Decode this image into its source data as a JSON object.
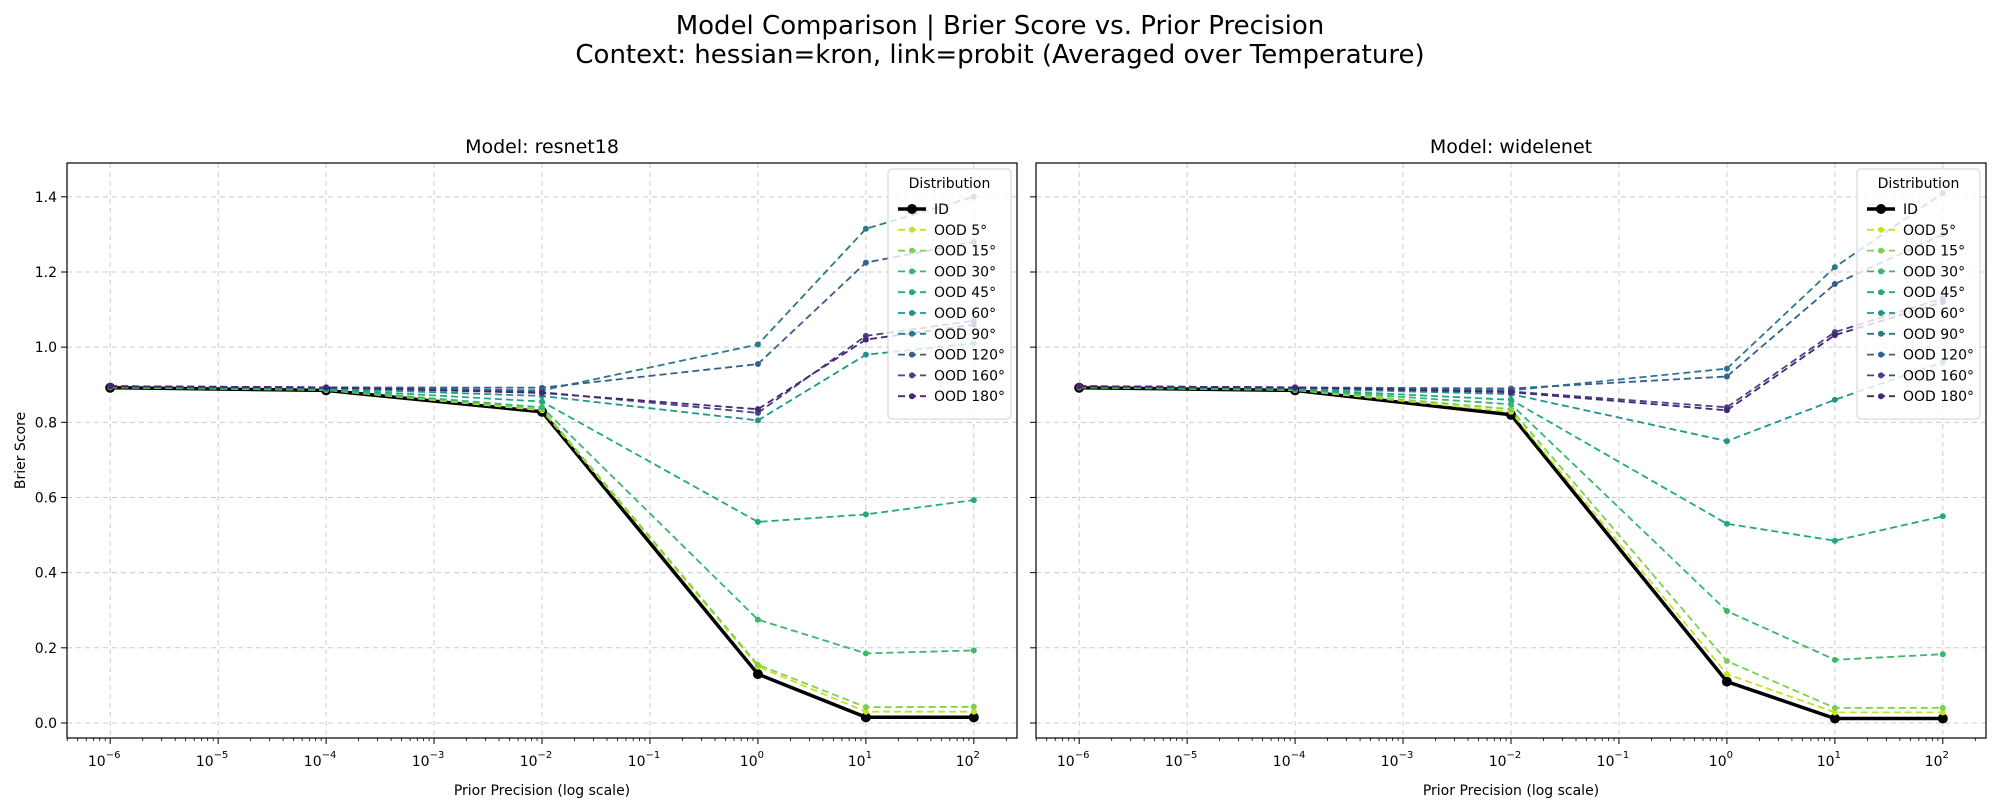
{
  "title_line1": "Model Comparison | Brier Score vs. Prior Precision",
  "title_line2": "Context: hessian=kron, link=probit (Averaged over Temperature)",
  "chart_data": [
    {
      "type": "line",
      "title": "Model: resnet18",
      "xlabel": "Prior Precision (log scale)",
      "ylabel": "Brier Score",
      "xscale": "log",
      "xlim_log10": [
        -6.4,
        2.4
      ],
      "ylim": [
        -0.04,
        1.49
      ],
      "x": [
        1e-06,
        0.0001,
        0.01,
        1,
        10,
        100
      ],
      "x_ticks": [
        {
          "e": "-6"
        },
        {
          "e": "-5"
        },
        {
          "e": "-4"
        },
        {
          "e": "-3"
        },
        {
          "e": "-2"
        },
        {
          "e": "-1"
        },
        {
          "e": "0"
        },
        {
          "e": "1"
        },
        {
          "e": "2"
        }
      ],
      "y_ticks": [
        "0.0",
        "0.2",
        "0.4",
        "0.6",
        "0.8",
        "1.0",
        "1.2",
        "1.4"
      ],
      "grid": true,
      "legend_title": "Distribution",
      "legend_position": "top-right",
      "series": [
        {
          "name": "ID",
          "color": "#000000",
          "values": [
            0.892,
            0.885,
            0.828,
            0.13,
            0.015,
            0.015
          ]
        },
        {
          "name": "OOD 5°",
          "color": "#c8e020",
          "values": [
            0.893,
            0.886,
            0.832,
            0.15,
            0.03,
            0.03
          ]
        },
        {
          "name": "OOD 15°",
          "color": "#7ad151",
          "values": [
            0.893,
            0.886,
            0.835,
            0.155,
            0.042,
            0.043
          ]
        },
        {
          "name": "OOD 30°",
          "color": "#3bb66c",
          "values": [
            0.894,
            0.887,
            0.84,
            0.275,
            0.185,
            0.193
          ]
        },
        {
          "name": "OOD 45°",
          "color": "#22a884",
          "values": [
            0.894,
            0.888,
            0.855,
            0.535,
            0.555,
            0.593
          ]
        },
        {
          "name": "OOD 60°",
          "color": "#1f968b",
          "values": [
            0.895,
            0.89,
            0.87,
            0.805,
            0.98,
            1.01
          ]
        },
        {
          "name": "OOD 90°",
          "color": "#2a788e",
          "values": [
            0.896,
            0.892,
            0.885,
            1.007,
            1.315,
            1.4
          ]
        },
        {
          "name": "OOD 120°",
          "color": "#355f8d",
          "values": [
            0.896,
            0.893,
            0.892,
            0.955,
            1.225,
            1.28
          ]
        },
        {
          "name": "OOD 160°",
          "color": "#414487",
          "values": [
            0.896,
            0.893,
            0.88,
            0.825,
            1.03,
            1.07
          ]
        },
        {
          "name": "OOD 180°",
          "color": "#482475",
          "values": [
            0.896,
            0.893,
            0.878,
            0.835,
            1.02,
            1.06
          ]
        }
      ]
    },
    {
      "type": "line",
      "title": "Model: widelenet",
      "xlabel": "Prior Precision (log scale)",
      "ylabel": "",
      "xscale": "log",
      "xlim_log10": [
        -6.4,
        2.4
      ],
      "ylim": [
        -0.04,
        1.49
      ],
      "x": [
        1e-06,
        0.0001,
        0.01,
        1,
        10,
        100
      ],
      "x_ticks": [
        {
          "e": "-6"
        },
        {
          "e": "-5"
        },
        {
          "e": "-4"
        },
        {
          "e": "-3"
        },
        {
          "e": "-2"
        },
        {
          "e": "-1"
        },
        {
          "e": "0"
        },
        {
          "e": "1"
        },
        {
          "e": "2"
        }
      ],
      "y_ticks": [],
      "grid": true,
      "legend_title": "Distribution",
      "legend_position": "top-right",
      "series": [
        {
          "name": "ID",
          "color": "#000000",
          "values": [
            0.892,
            0.885,
            0.82,
            0.11,
            0.012,
            0.012
          ]
        },
        {
          "name": "OOD 5°",
          "color": "#c8e020",
          "values": [
            0.893,
            0.886,
            0.828,
            0.13,
            0.028,
            0.028
          ]
        },
        {
          "name": "OOD 15°",
          "color": "#7ad151",
          "values": [
            0.893,
            0.886,
            0.835,
            0.165,
            0.04,
            0.04
          ]
        },
        {
          "name": "OOD 30°",
          "color": "#3bb66c",
          "values": [
            0.894,
            0.887,
            0.848,
            0.298,
            0.168,
            0.183
          ]
        },
        {
          "name": "OOD 45°",
          "color": "#22a884",
          "values": [
            0.894,
            0.888,
            0.86,
            0.53,
            0.485,
            0.55
          ]
        },
        {
          "name": "OOD 60°",
          "color": "#1f968b",
          "values": [
            0.895,
            0.89,
            0.875,
            0.75,
            0.86,
            0.96
          ]
        },
        {
          "name": "OOD 90°",
          "color": "#2a788e",
          "values": [
            0.896,
            0.892,
            0.885,
            0.943,
            1.213,
            1.41
          ]
        },
        {
          "name": "OOD 120°",
          "color": "#355f8d",
          "values": [
            0.896,
            0.893,
            0.89,
            0.922,
            1.168,
            1.3
          ]
        },
        {
          "name": "OOD 160°",
          "color": "#414487",
          "values": [
            0.896,
            0.893,
            0.882,
            0.84,
            1.04,
            1.13
          ]
        },
        {
          "name": "OOD 180°",
          "color": "#482475",
          "values": [
            0.896,
            0.893,
            0.88,
            0.832,
            1.032,
            1.12
          ]
        }
      ]
    }
  ]
}
